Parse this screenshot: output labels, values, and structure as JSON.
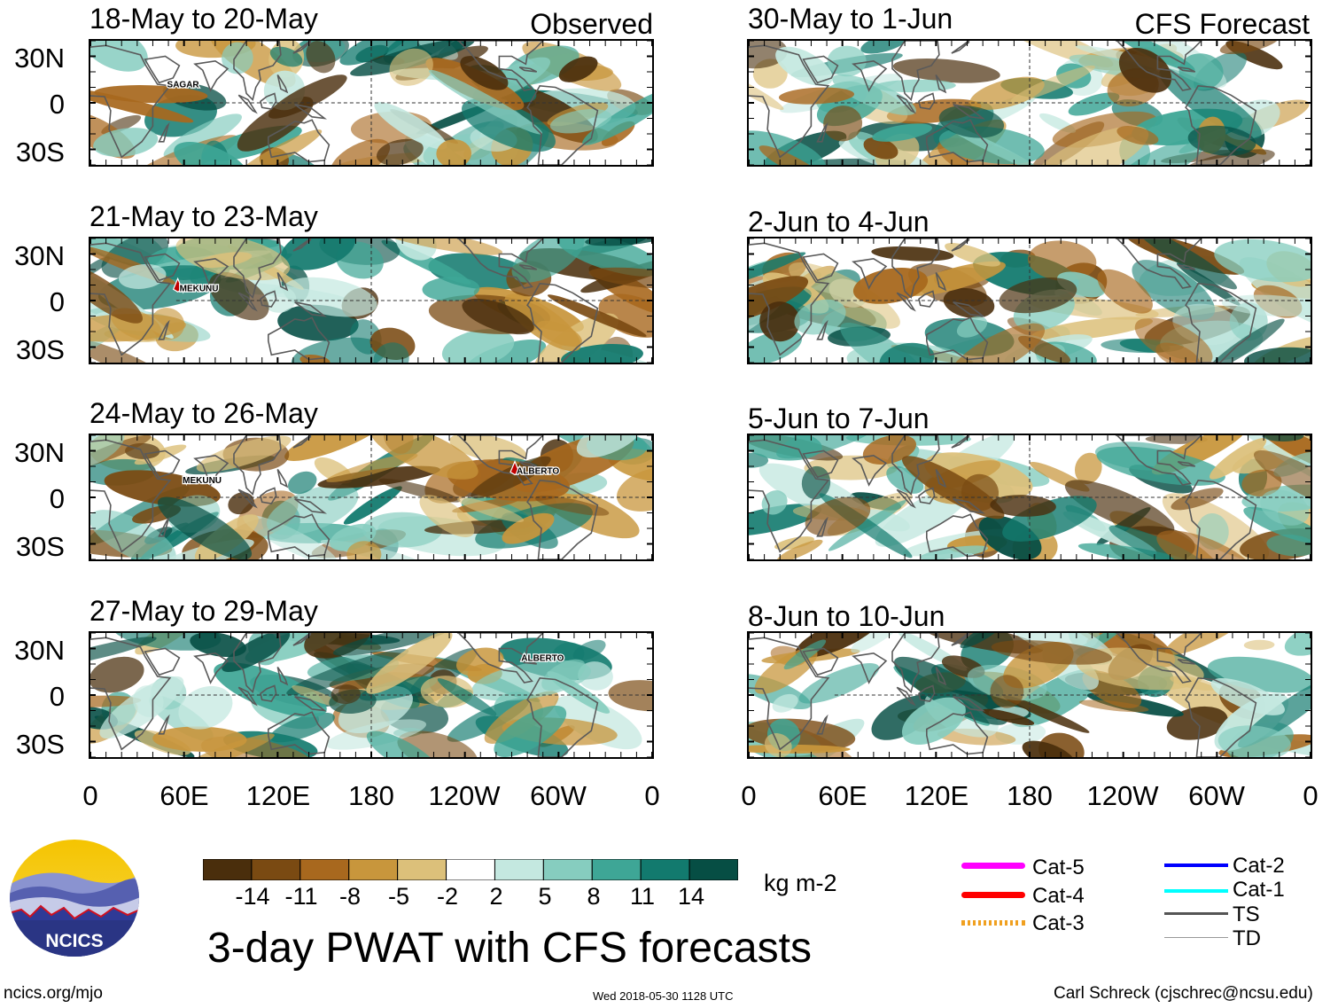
{
  "chart_data": {
    "type": "heatmap",
    "title": "3-day PWAT with CFS forecasts",
    "units": "kg m-2",
    "variable": "3-day precipitable water anomaly",
    "ylabels": [
      "30N",
      "0",
      "30S"
    ],
    "xlabels": [
      "0",
      "60E",
      "120E",
      "180",
      "120W",
      "60W",
      "0"
    ],
    "colorbar": {
      "ticks": [
        "-14",
        "-11",
        "-8",
        "-5",
        "-2",
        "2",
        "5",
        "8",
        "11",
        "14"
      ],
      "colors": [
        "#4a2e0c",
        "#7a4a12",
        "#a8681e",
        "#c8963c",
        "#dcc07a",
        "#f2e6c4",
        "#ffffff",
        "#c4e8e0",
        "#86cdbf",
        "#3ea696",
        "#127a6e",
        "#064e44"
      ]
    },
    "panels": [
      {
        "id": "p1",
        "title": "18-May to 20-May",
        "corner": "Observed",
        "storms": [
          {
            "name": "SAGAR",
            "marker": false
          }
        ]
      },
      {
        "id": "p2",
        "title": "21-May to 23-May",
        "corner": "",
        "storms": [
          {
            "name": "MEKUNU",
            "marker": true
          }
        ]
      },
      {
        "id": "p3",
        "title": "24-May to 26-May",
        "corner": "",
        "storms": [
          {
            "name": "MEKUNU",
            "marker": false
          },
          {
            "name": "ALBERTO",
            "marker": true
          }
        ]
      },
      {
        "id": "p4",
        "title": "27-May to 29-May",
        "corner": "",
        "storms": [
          {
            "name": "ALBERTO",
            "marker": false
          }
        ]
      },
      {
        "id": "p5",
        "title": "30-May to 1-Jun",
        "corner": "CFS Forecast",
        "storms": []
      },
      {
        "id": "p6",
        "title": "2-Jun to 4-Jun",
        "corner": "",
        "storms": []
      },
      {
        "id": "p7",
        "title": "5-Jun to 7-Jun",
        "corner": "",
        "storms": []
      },
      {
        "id": "p8",
        "title": "8-Jun to 10-Jun",
        "corner": "",
        "storms": []
      }
    ],
    "legend": [
      {
        "label": "Cat-5",
        "color": "#ff00ff"
      },
      {
        "label": "Cat-4",
        "color": "#ff0000"
      },
      {
        "label": "Cat-3",
        "color": "#f0a020"
      },
      {
        "label": "Cat-2",
        "color": "#0000ff"
      },
      {
        "label": "Cat-1",
        "color": "#00ffff"
      },
      {
        "label": "TS",
        "color": "#555555"
      },
      {
        "label": "TD",
        "color": "#999999"
      }
    ]
  },
  "logo": {
    "text": "NCICS"
  },
  "footer": {
    "url": "ncics.org/mjo",
    "timestamp": "Wed 2018-05-30 1128 UTC",
    "author": "Carl Schreck (cjschrec@ncsu.edu)"
  }
}
